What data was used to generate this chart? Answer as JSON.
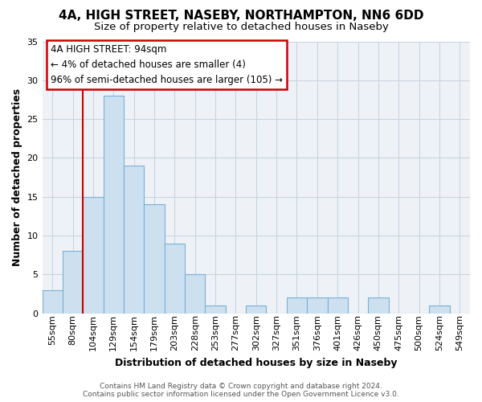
{
  "title1": "4A, HIGH STREET, NASEBY, NORTHAMPTON, NN6 6DD",
  "title2": "Size of property relative to detached houses in Naseby",
  "xlabel": "Distribution of detached houses by size in Naseby",
  "ylabel": "Number of detached properties",
  "bins": [
    "55sqm",
    "80sqm",
    "104sqm",
    "129sqm",
    "154sqm",
    "179sqm",
    "203sqm",
    "228sqm",
    "253sqm",
    "277sqm",
    "302sqm",
    "327sqm",
    "351sqm",
    "376sqm",
    "401sqm",
    "426sqm",
    "450sqm",
    "475sqm",
    "500sqm",
    "524sqm",
    "549sqm"
  ],
  "values": [
    3,
    8,
    15,
    28,
    19,
    14,
    9,
    5,
    1,
    0,
    1,
    0,
    2,
    2,
    2,
    0,
    2,
    0,
    0,
    1,
    0
  ],
  "bar_color": "#cce0f0",
  "bar_edge_color": "#7ab0d4",
  "ylim": [
    0,
    35
  ],
  "yticks": [
    0,
    5,
    10,
    15,
    20,
    25,
    30,
    35
  ],
  "annotation_line1": "4A HIGH STREET: 94sqm",
  "annotation_line2": "← 4% of detached houses are smaller (4)",
  "annotation_line3": "96% of semi-detached houses are larger (105) →",
  "annotation_box_color": "#ffffff",
  "annotation_border_color": "#cc0000",
  "footer_line1": "Contains HM Land Registry data © Crown copyright and database right 2024.",
  "footer_line2": "Contains public sector information licensed under the Open Government Licence v3.0.",
  "red_line_color": "#cc0000",
  "grid_color": "#c8d4e0",
  "bg_color": "#eef2f7",
  "title1_fontsize": 11,
  "title2_fontsize": 9.5,
  "xlabel_fontsize": 9,
  "ylabel_fontsize": 9,
  "tick_fontsize": 8,
  "annotation_fontsize": 8.5,
  "footer_fontsize": 6.5
}
